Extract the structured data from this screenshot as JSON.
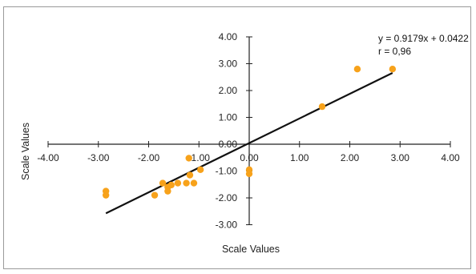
{
  "chart_data": {
    "type": "scatter",
    "title": "",
    "xlabel": "Scale Values",
    "ylabel": "Scale Values",
    "xlim": [
      -4,
      4
    ],
    "ylim": [
      -3,
      4
    ],
    "grid": false,
    "legend": "none",
    "colors": {
      "points": "#f7a21b",
      "trendline": "#111111",
      "axes": "#222222"
    },
    "x_ticks": [
      "-4.00",
      "-3.00",
      "-2.00",
      "-1.00",
      "0.00",
      "1.00",
      "2.00",
      "3.00",
      "4.00"
    ],
    "y_ticks": [
      "-3.00",
      "-2.00",
      "-1.00",
      "0.00",
      "1.00",
      "2.00",
      "3.00",
      "4.00"
    ],
    "points": [
      {
        "x": -2.85,
        "y": -1.75
      },
      {
        "x": -2.85,
        "y": -1.9
      },
      {
        "x": -1.88,
        "y": -1.9
      },
      {
        "x": -1.72,
        "y": -1.45
      },
      {
        "x": -1.62,
        "y": -1.6
      },
      {
        "x": -1.62,
        "y": -1.75
      },
      {
        "x": -1.55,
        "y": -1.52
      },
      {
        "x": -1.42,
        "y": -1.45
      },
      {
        "x": -1.25,
        "y": -1.45
      },
      {
        "x": -1.2,
        "y": -0.52
      },
      {
        "x": -1.18,
        "y": -1.15
      },
      {
        "x": -1.1,
        "y": -1.45
      },
      {
        "x": -0.97,
        "y": -0.95
      },
      {
        "x": 0.0,
        "y": -0.95
      },
      {
        "x": 0.0,
        "y": -1.1
      },
      {
        "x": 1.45,
        "y": 1.4
      },
      {
        "x": 2.15,
        "y": 2.8
      },
      {
        "x": 2.85,
        "y": 2.8
      }
    ],
    "trendline": {
      "equation": "y = 0.9179x + 0.0422",
      "r_label": "r = 0,96",
      "slope": 0.9179,
      "intercept": 0.0422,
      "x_range": [
        -2.85,
        2.85
      ]
    }
  }
}
